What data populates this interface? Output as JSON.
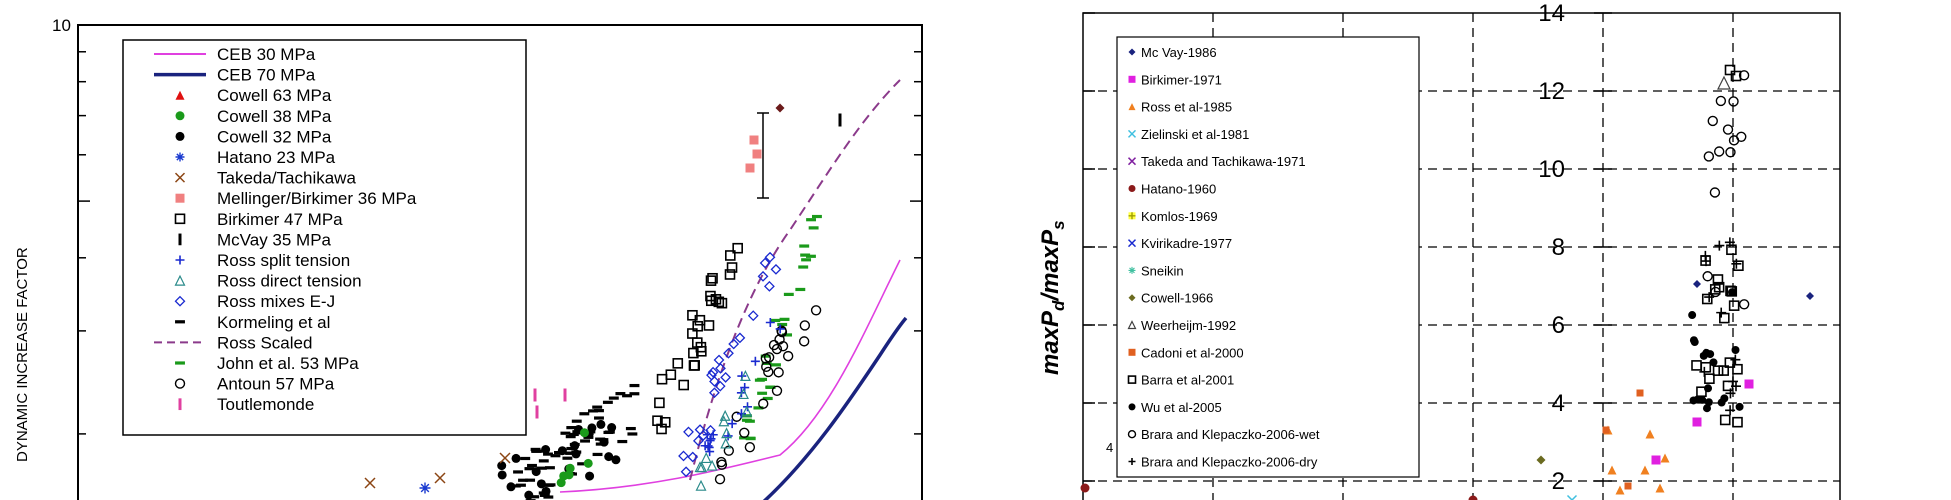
{
  "chart_data": [
    {
      "type": "scatter",
      "title": "",
      "ylabel": "DYNAMIC INCREASE FACTOR",
      "yscale": "log",
      "ytick_labels": [
        "10"
      ],
      "legend_position": "top-left",
      "legend": [
        {
          "name": "CEB 30 MPa",
          "marker": "line",
          "color": "#e040e0"
        },
        {
          "name": "CEB 70 MPa",
          "marker": "line-thick",
          "color": "#1a237e"
        },
        {
          "name": "Cowell 63 MPa",
          "marker": "triangle",
          "color": "#e01010"
        },
        {
          "name": "Cowell 38 MPa",
          "marker": "dot",
          "color": "#1a9a1a"
        },
        {
          "name": "Cowell 32 MPa",
          "marker": "dot",
          "color": "#000000"
        },
        {
          "name": "Hatano 23 MPa",
          "marker": "asterisk",
          "color": "#1a3ad0"
        },
        {
          "name": "Takeda/Tachikawa",
          "marker": "x",
          "color": "#8b4513"
        },
        {
          "name": "Mellinger/Birkimer 36 MPa",
          "marker": "square-filled",
          "color": "#f08080"
        },
        {
          "name": "Birkimer 47 MPa",
          "marker": "square-open",
          "color": "#000000"
        },
        {
          "name": "McVay 35 MPa",
          "marker": "vbar",
          "color": "#000000"
        },
        {
          "name": "Ross split tension",
          "marker": "plus",
          "color": "#1a2ad0"
        },
        {
          "name": "Ross direct tension",
          "marker": "triangle-open",
          "color": "#2a8a8a"
        },
        {
          "name": "Ross mixes E-J",
          "marker": "diamond-open",
          "color": "#1a2ad0"
        },
        {
          "name": "Kormeling et al",
          "marker": "hbar",
          "color": "#000000"
        },
        {
          "name": "Ross Scaled",
          "marker": "dashed",
          "color": "#8b3a8b"
        },
        {
          "name": "John et al. 53 MPa",
          "marker": "hbar",
          "color": "#1a9a1a"
        },
        {
          "name": "Antoun 57 MPa",
          "marker": "circle-open",
          "color": "#000000"
        },
        {
          "name": "Toutlemonde",
          "marker": "vbar",
          "color": "#e040a0"
        }
      ]
    },
    {
      "type": "scatter",
      "title": "",
      "ylabel_main": "maxP",
      "ylabel_sub1": "d",
      "ylabel_mid": "/maxP",
      "ylabel_sub2": "s",
      "ylim": [
        2,
        14
      ],
      "yticks": [
        2,
        4,
        6,
        8,
        10,
        12,
        14
      ],
      "stray_label": "4",
      "grid": true,
      "grid_style": "dashed",
      "legend_position": "top-left",
      "legend": [
        {
          "name": "Mc Vay-1986",
          "marker": "diamond",
          "color": "#1a237e"
        },
        {
          "name": "Birkimer-1971",
          "marker": "square",
          "color": "#e020e0"
        },
        {
          "name": "Ross et al-1985",
          "marker": "triangle",
          "color": "#f08020"
        },
        {
          "name": "Zielinski et al-1981",
          "marker": "x",
          "color": "#40c0e0"
        },
        {
          "name": "Takeda and Tachikawa-1971",
          "marker": "x",
          "color": "#8020a0"
        },
        {
          "name": "Hatano-1960",
          "marker": "dot",
          "color": "#8b1a1a"
        },
        {
          "name": "Komlos-1969",
          "marker": "plus-yellow",
          "color": "#d0d000"
        },
        {
          "name": "Kvirikadre-1977",
          "marker": "x",
          "color": "#1a2ad0"
        },
        {
          "name": "Sneikin",
          "marker": "star",
          "color": "#40c0a0"
        },
        {
          "name": "Cowell-1966",
          "marker": "diamond",
          "color": "#6b6b20"
        },
        {
          "name": "Weerheijm-1992",
          "marker": "triangle-open",
          "color": "#404040"
        },
        {
          "name": "Cadoni et al-2000",
          "marker": "square",
          "color": "#e06020"
        },
        {
          "name": "Barra et al-2001",
          "marker": "square-open",
          "color": "#000000"
        },
        {
          "name": "Wu et al-2005",
          "marker": "dot",
          "color": "#000000"
        },
        {
          "name": "Brara and Klepaczko-2006-wet",
          "marker": "circle-open",
          "color": "#000000"
        },
        {
          "name": "Brara and Klepaczko-2006-dry",
          "marker": "plus",
          "color": "#000000"
        }
      ]
    }
  ]
}
